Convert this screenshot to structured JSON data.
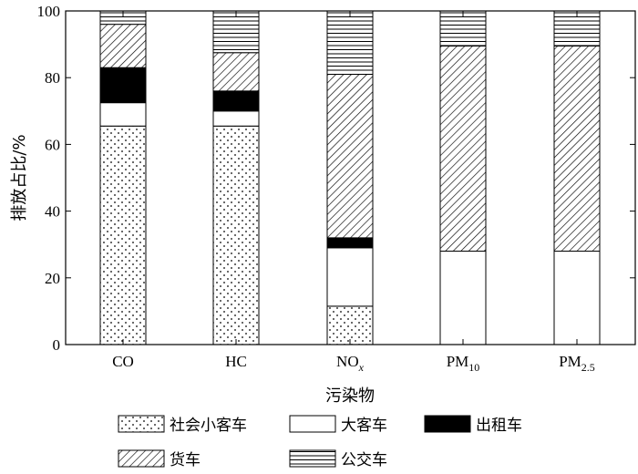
{
  "chart_data": {
    "type": "bar",
    "stacked": true,
    "categories": [
      "CO",
      "HC",
      "NOx",
      "PM10",
      "PM2.5"
    ],
    "category_labels": [
      {
        "main": "CO",
        "sub": "",
        "sub_style": ""
      },
      {
        "main": "HC",
        "sub": "",
        "sub_style": ""
      },
      {
        "main": "NO",
        "sub": "x",
        "sub_style": "italic"
      },
      {
        "main": "PM",
        "sub": "10",
        "sub_style": "normal"
      },
      {
        "main": "PM",
        "sub": "2.5",
        "sub_style": "normal"
      }
    ],
    "series": [
      {
        "name": "社会小客车",
        "pattern": "dots",
        "values": [
          65.5,
          65.5,
          11.5,
          0,
          0
        ]
      },
      {
        "name": "大客车",
        "pattern": "white",
        "values": [
          7,
          4.5,
          17.5,
          28,
          28
        ]
      },
      {
        "name": "出租车",
        "pattern": "black",
        "values": [
          10.5,
          6,
          3,
          0,
          0
        ]
      },
      {
        "name": "货车",
        "pattern": "diagonal",
        "values": [
          13,
          11.5,
          49,
          61.5,
          61.5
        ]
      },
      {
        "name": "公交车",
        "pattern": "horizontal",
        "values": [
          4,
          12.5,
          19,
          10.5,
          10.5
        ]
      }
    ],
    "xlabel": "污染物",
    "ylabel": "排放占比/%",
    "ylim": [
      0,
      100
    ],
    "yticks": [
      0,
      20,
      40,
      60,
      80,
      100
    ],
    "legend_position": "bottom",
    "grid": false
  }
}
